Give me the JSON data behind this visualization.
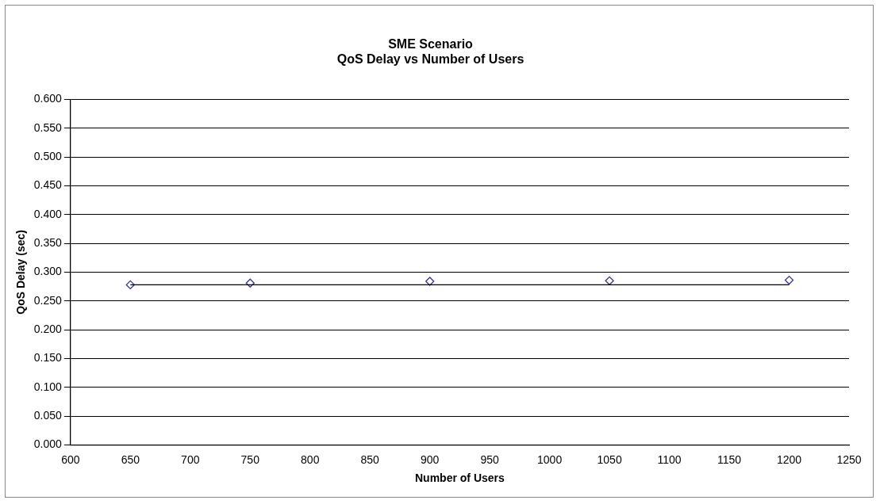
{
  "chart_data": {
    "type": "scatter",
    "title": "SME Scenario",
    "subtitle": "QoS Delay vs Number of Users",
    "xlabel": "Number of Users",
    "ylabel": "QoS Delay (sec)",
    "x": [
      650,
      750,
      900,
      1050,
      1200
    ],
    "series": [
      {
        "color": "#333399",
        "values": [
          0.278,
          0.281,
          0.284,
          0.285,
          0.286
        ],
        "marker": "diamond"
      },
      {
        "type": "line",
        "color": "#000000",
        "x": [
          650,
          1200
        ],
        "values": [
          0.278,
          0.278
        ],
        "marker": "none"
      }
    ],
    "xlim": [
      600,
      1250
    ],
    "xticks": [
      600,
      650,
      700,
      750,
      800,
      850,
      900,
      950,
      1000,
      1050,
      1100,
      1150,
      1200,
      1250
    ],
    "ylim": [
      0,
      0.6
    ],
    "yticks": [
      {
        "value": 0,
        "label": "0.000"
      },
      {
        "value": 0.05,
        "label": "0.050"
      },
      {
        "value": 0.1,
        "label": "0.100"
      },
      {
        "value": 0.15,
        "label": "0.150"
      },
      {
        "value": 0.2,
        "label": "0.200"
      },
      {
        "value": 0.25,
        "label": "0.250"
      },
      {
        "value": 0.3,
        "label": "0.300"
      },
      {
        "value": 0.35,
        "label": "0.350"
      },
      {
        "value": 0.4,
        "label": "0.400"
      },
      {
        "value": 0.45,
        "label": "0.450"
      },
      {
        "value": 0.5,
        "label": "0.500"
      },
      {
        "value": 0.55,
        "label": "0.550"
      },
      {
        "value": 0.6,
        "label": "0.600"
      }
    ],
    "grid": "y",
    "legend": false
  }
}
